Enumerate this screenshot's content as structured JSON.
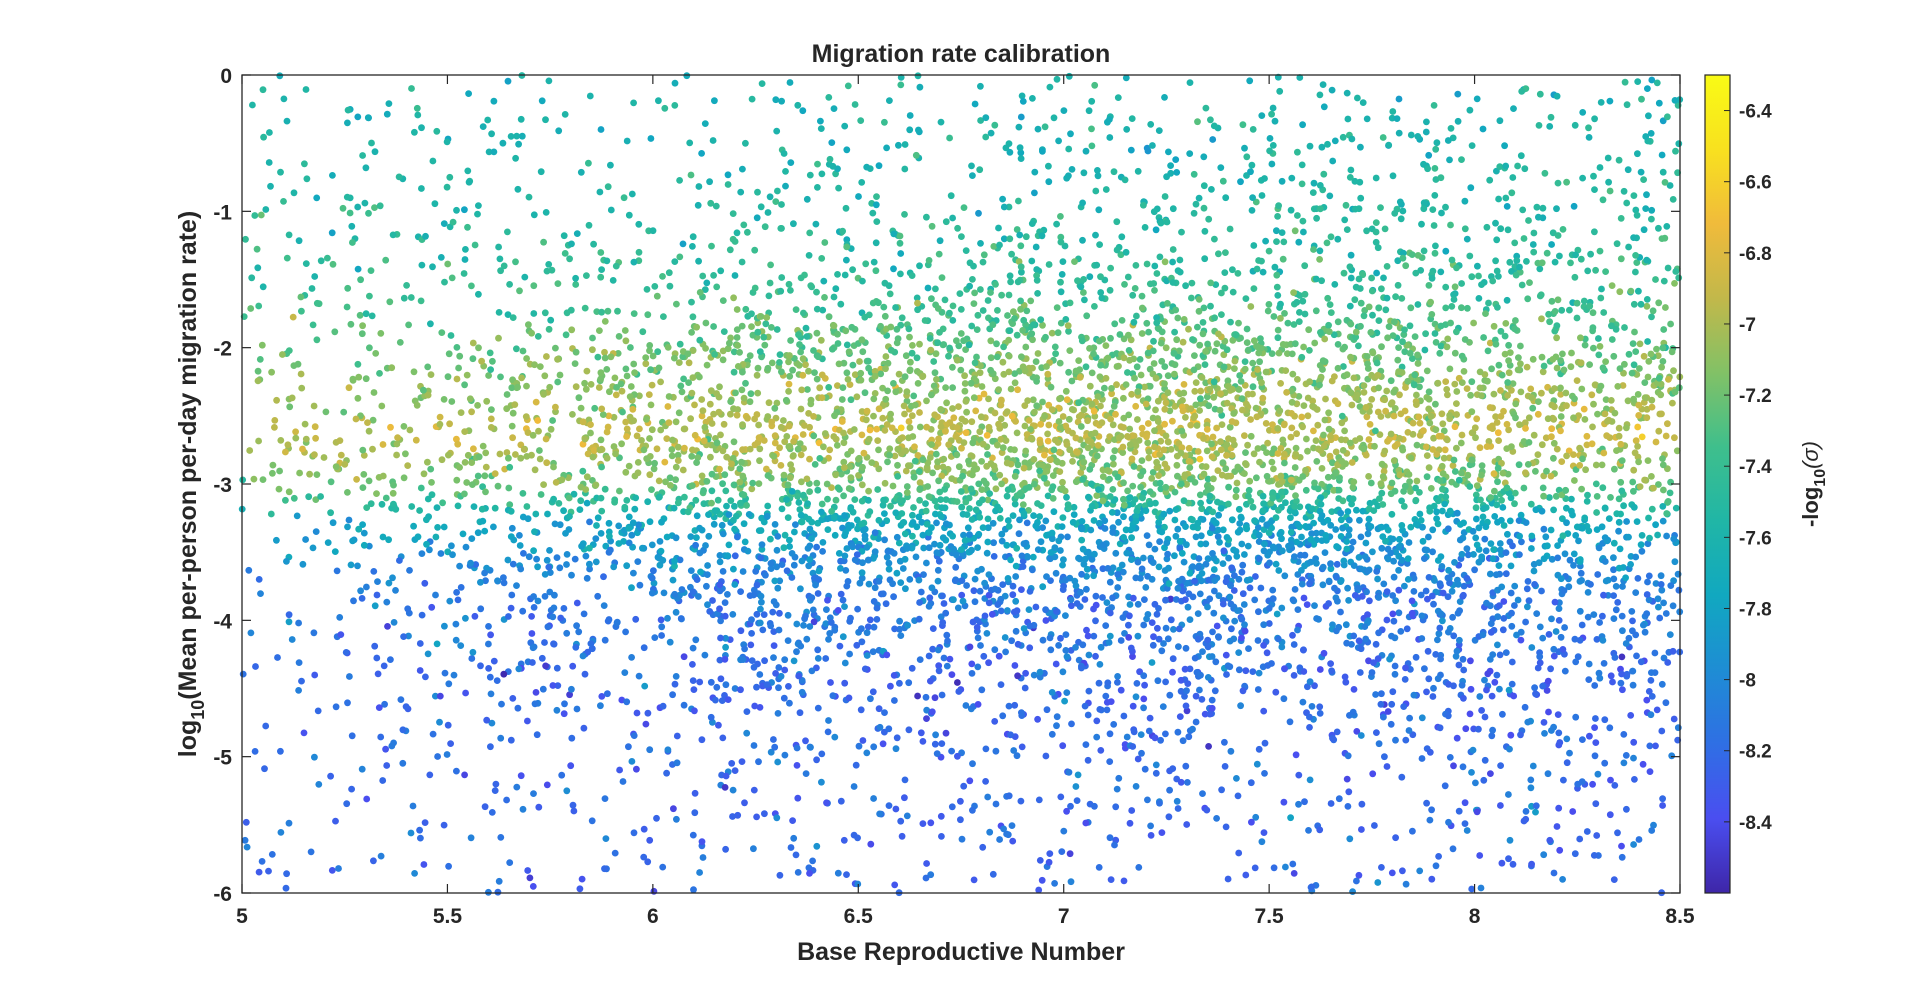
{
  "chart_data": {
    "type": "scatter",
    "title": "Migration rate calibration",
    "xlabel": "Base Reproductive Number",
    "ylabel": {
      "prefix": "log",
      "subscript": "10",
      "rest": "(Mean per-person per-day migration rate)"
    },
    "xlim": [
      5,
      8.5
    ],
    "ylim": [
      -6,
      0
    ],
    "xticks": [
      5,
      5.5,
      6,
      6.5,
      7,
      7.5,
      8,
      8.5
    ],
    "xtick_labels": [
      "5",
      "5.5",
      "6",
      "6.5",
      "7",
      "7.5",
      "8",
      "8.5"
    ],
    "yticks": [
      -6,
      -5,
      -4,
      -3,
      -2,
      -1,
      0
    ],
    "ytick_labels": [
      "-6",
      "-5",
      "-4",
      "-3",
      "-2",
      "-1",
      "0"
    ],
    "grid": false,
    "colorbar": {
      "label": {
        "prefix": "-log",
        "subscript": "10",
        "rest": "(σ)"
      },
      "range": [
        -8.6,
        -6.3
      ],
      "ticks": [
        -8.4,
        -8.2,
        -8,
        -7.8,
        -7.6,
        -7.4,
        -7.2,
        -7,
        -6.8,
        -6.6,
        -6.4
      ],
      "tick_labels": [
        "-8.4",
        "-8.2",
        "-8",
        "-7.8",
        "-7.6",
        "-7.4",
        "-7.2",
        "-7",
        "-6.8",
        "-6.6",
        "-6.4"
      ],
      "colormap": "parula",
      "colormap_stops": [
        "#3e26a8",
        "#4a4ef0",
        "#2f6fe4",
        "#1e8dd4",
        "#11a8c0",
        "#20b6a6",
        "#3fbf8c",
        "#82c166",
        "#c2b84a",
        "#f0bb3b",
        "#f8e11f",
        "#f9fb15"
      ]
    },
    "point_color_default": "#2fb3b0",
    "clusters": [
      {
        "xmin": 5.0,
        "xmax": 8.5,
        "ymin": -6.0,
        "ymax": 0.0,
        "count": 1700,
        "shape": "uniform"
      },
      {
        "x_center": 7.1,
        "x_spread": 0.95,
        "y_center": -2.9,
        "y_spread": 0.75,
        "count": 4200,
        "shape": "gaussian"
      },
      {
        "x_center": 7.4,
        "x_spread": 1.2,
        "y_center": -3.8,
        "y_spread": 1.1,
        "count": 1800,
        "shape": "gaussian"
      },
      {
        "x_center": 7.6,
        "x_spread": 1.1,
        "y_center": -1.6,
        "y_spread": 0.9,
        "count": 1100,
        "shape": "gaussian"
      }
    ],
    "color_vs_y": {
      "y": [
        -6.0,
        -4.5,
        -3.8,
        -3.3,
        -3.0,
        -2.6,
        -2.2,
        -1.5,
        -0.5,
        0.0
      ],
      "color_value": [
        -8.2,
        -8.2,
        -8.1,
        -7.8,
        -7.2,
        -6.95,
        -7.15,
        -7.45,
        -7.6,
        -7.6
      ]
    }
  }
}
